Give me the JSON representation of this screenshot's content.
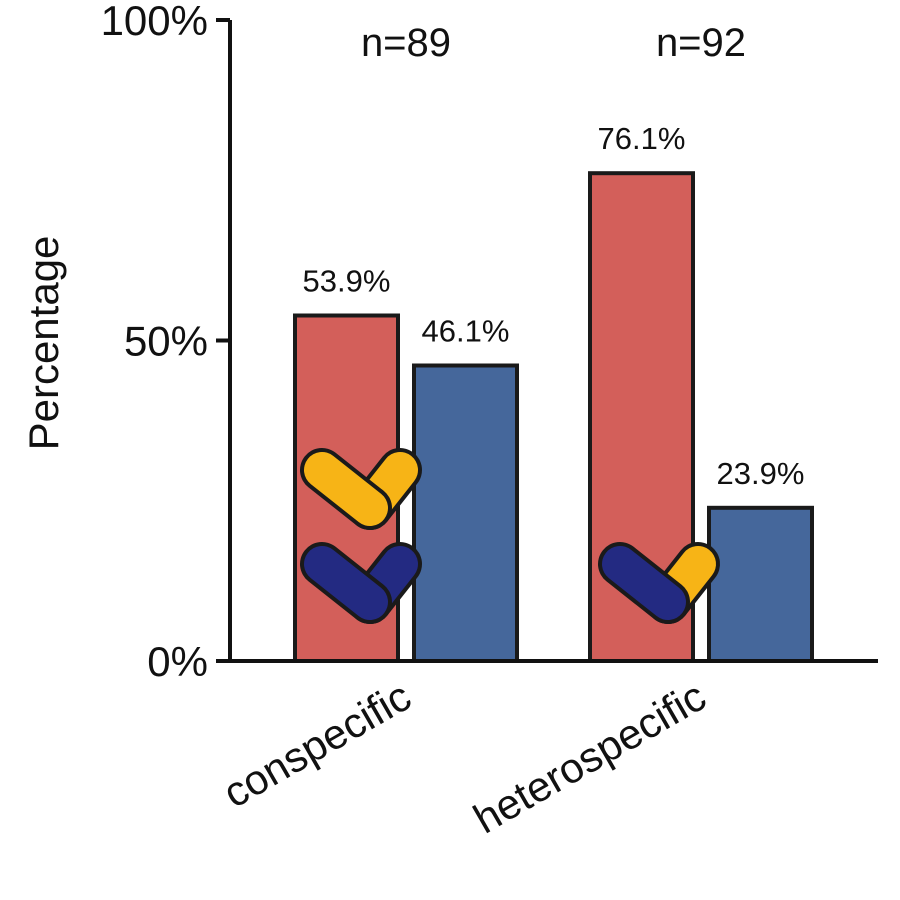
{
  "chart_data": {
    "type": "bar",
    "title": "",
    "ylabel": "Percentage",
    "xlabel": "",
    "ylim": [
      0,
      100
    ],
    "yticks": [
      {
        "value": 0,
        "label": "0%"
      },
      {
        "value": 50,
        "label": "50%"
      },
      {
        "value": 100,
        "label": "100%"
      }
    ],
    "categories": [
      "conspecific",
      "heterospecific"
    ],
    "sample_sizes": [
      "n=89",
      "n=92"
    ],
    "series": [
      {
        "color": "#d35f5a",
        "values": [
          53.9,
          76.1
        ],
        "labels": [
          "53.9%",
          "76.1%"
        ]
      },
      {
        "color": "#45679b",
        "values": [
          46.1,
          23.9
        ],
        "labels": [
          "46.1%",
          "23.9%"
        ]
      }
    ],
    "grid": false,
    "legend": "none"
  },
  "pictograms": [
    {
      "category": "conspecific",
      "icons": [
        "yellow-check-icon",
        "navy-check-icon"
      ]
    },
    {
      "category": "heterospecific",
      "icons": [
        "navy-yellow-check-icon"
      ]
    }
  ],
  "colors": {
    "yellow": "#f7b416",
    "navy": "#232a82",
    "outline": "#1a1a1a"
  }
}
